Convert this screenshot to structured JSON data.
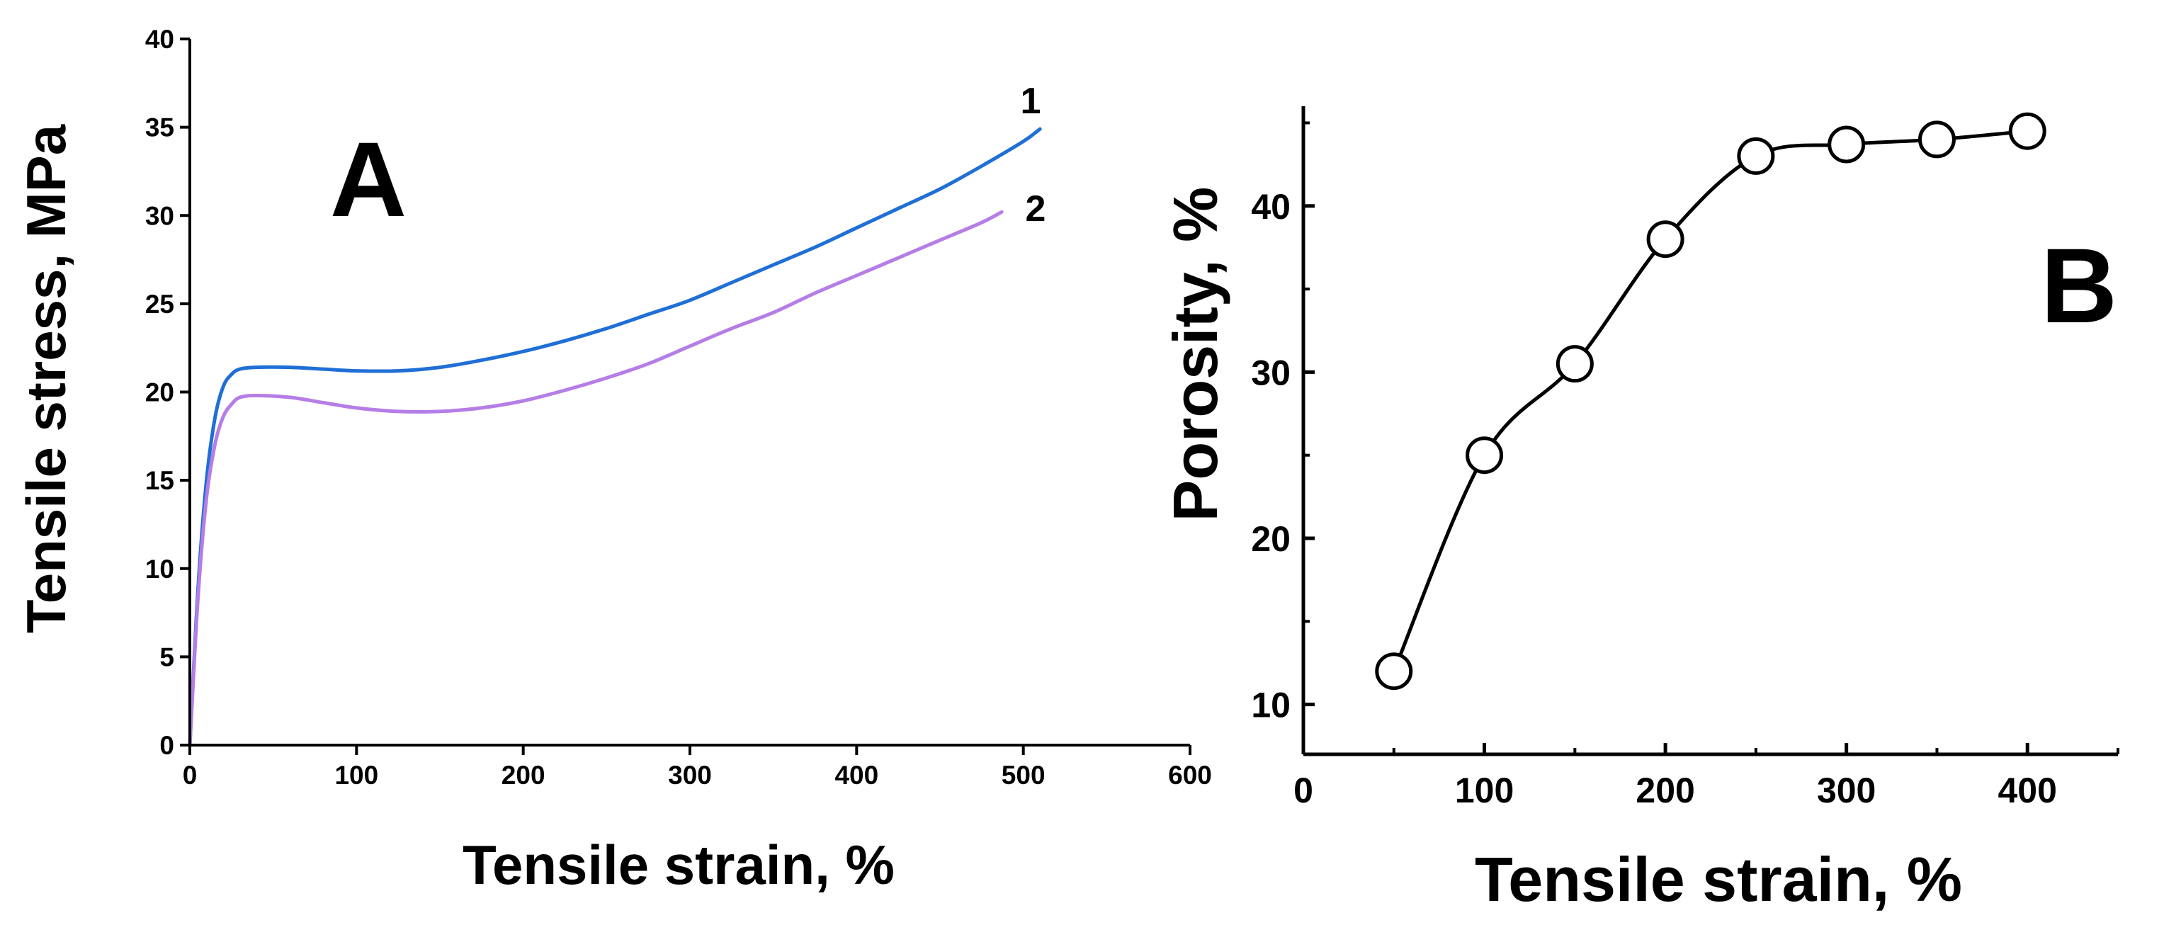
{
  "chart_data": [
    {
      "panel": "A",
      "type": "line",
      "xlabel": "Tensile strain, %",
      "ylabel": "Tensile stress, MPa",
      "xlim": [
        0,
        600
      ],
      "ylim": [
        0,
        40
      ],
      "xticks": [
        0,
        100,
        200,
        300,
        400,
        500,
        600
      ],
      "yticks": [
        0,
        5,
        10,
        15,
        20,
        25,
        30,
        35,
        40
      ],
      "grid": false,
      "series": [
        {
          "name": "1",
          "color": "#1f6fd6",
          "points": [
            [
              0,
              0
            ],
            [
              5,
              9
            ],
            [
              10,
              15
            ],
            [
              15,
              18.5
            ],
            [
              20,
              20.3
            ],
            [
              25,
              21
            ],
            [
              30,
              21.3
            ],
            [
              40,
              21.4
            ],
            [
              60,
              21.4
            ],
            [
              80,
              21.3
            ],
            [
              100,
              21.2
            ],
            [
              125,
              21.2
            ],
            [
              150,
              21.4
            ],
            [
              175,
              21.8
            ],
            [
              200,
              22.3
            ],
            [
              225,
              22.9
            ],
            [
              250,
              23.6
            ],
            [
              275,
              24.4
            ],
            [
              300,
              25.2
            ],
            [
              325,
              26.2
            ],
            [
              350,
              27.2
            ],
            [
              375,
              28.2
            ],
            [
              400,
              29.3
            ],
            [
              425,
              30.4
            ],
            [
              450,
              31.5
            ],
            [
              475,
              32.8
            ],
            [
              500,
              34.2
            ],
            [
              510,
              34.9
            ]
          ]
        },
        {
          "name": "2",
          "color": "#b57ee6",
          "points": [
            [
              0,
              0
            ],
            [
              5,
              8.5
            ],
            [
              10,
              14
            ],
            [
              15,
              17
            ],
            [
              20,
              18.6
            ],
            [
              25,
              19.3
            ],
            [
              30,
              19.7
            ],
            [
              40,
              19.8
            ],
            [
              60,
              19.7
            ],
            [
              80,
              19.4
            ],
            [
              100,
              19.1
            ],
            [
              125,
              18.9
            ],
            [
              150,
              18.9
            ],
            [
              175,
              19.1
            ],
            [
              200,
              19.5
            ],
            [
              225,
              20.1
            ],
            [
              250,
              20.8
            ],
            [
              275,
              21.6
            ],
            [
              300,
              22.6
            ],
            [
              325,
              23.6
            ],
            [
              350,
              24.5
            ],
            [
              375,
              25.6
            ],
            [
              400,
              26.6
            ],
            [
              425,
              27.6
            ],
            [
              450,
              28.6
            ],
            [
              475,
              29.6
            ],
            [
              487,
              30.2
            ]
          ]
        }
      ],
      "annotations": [
        "A",
        "1",
        "2"
      ]
    },
    {
      "panel": "B",
      "type": "line",
      "xlabel": "Tensile strain, %",
      "ylabel": "Porosity, %",
      "xlim": [
        0,
        450
      ],
      "ylim": [
        7,
        46
      ],
      "xticks": [
        0,
        100,
        200,
        300,
        400
      ],
      "yticks": [
        10,
        20,
        30,
        40
      ],
      "grid": false,
      "series": [
        {
          "name": "Porosity",
          "color": "#000000",
          "marker": "open-circle",
          "x": [
            50,
            100,
            150,
            200,
            250,
            300,
            350,
            400
          ],
          "values": [
            12,
            25,
            30.5,
            38,
            43,
            43.7,
            44,
            44.5
          ]
        }
      ],
      "annotations": [
        "B"
      ]
    }
  ]
}
